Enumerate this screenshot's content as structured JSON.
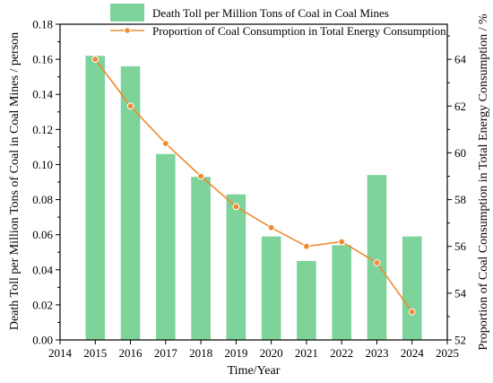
{
  "chart_data": {
    "type": "bar+line",
    "x": [
      2015,
      2016,
      2017,
      2018,
      2019,
      2020,
      2021,
      2022,
      2023,
      2024
    ],
    "xlabel": "Time/Year",
    "xlim": [
      2014,
      2025
    ],
    "xticks": [
      "2014",
      "2015",
      "2016",
      "2017",
      "2018",
      "2019",
      "2020",
      "2021",
      "2022",
      "2023",
      "2024",
      "2025"
    ],
    "series": [
      {
        "name": "Death Toll per Million Tons of Coal in Coal Mines",
        "type": "bar",
        "axis": "left",
        "color": "#7ed39a",
        "values": [
          0.162,
          0.156,
          0.106,
          0.093,
          0.083,
          0.059,
          0.045,
          0.054,
          0.094,
          0.059
        ]
      },
      {
        "name": "Proportion of Coal Consumption in Total Energy Consumption",
        "type": "line",
        "axis": "right",
        "color": "#f0892e",
        "values": [
          64.0,
          62.0,
          60.4,
          59.0,
          57.7,
          56.8,
          56.0,
          56.2,
          55.3,
          53.2
        ]
      }
    ],
    "ylabel_left": "Death Toll per Million Tons of Coal in Coal Mines / person",
    "ylim_left": [
      0,
      0.18
    ],
    "yticks_left": [
      "0.00",
      "0.02",
      "0.04",
      "0.06",
      "0.08",
      "0.10",
      "0.12",
      "0.14",
      "0.16",
      "0.18"
    ],
    "ylabel_right": "Proportion of Coal Consumption in Total Energy Consumption / %",
    "ylim_right": [
      52,
      65.5
    ],
    "yticks_right": [
      "52",
      "54",
      "56",
      "58",
      "60",
      "62",
      "64"
    ],
    "legend_position": "top",
    "grid": false
  }
}
